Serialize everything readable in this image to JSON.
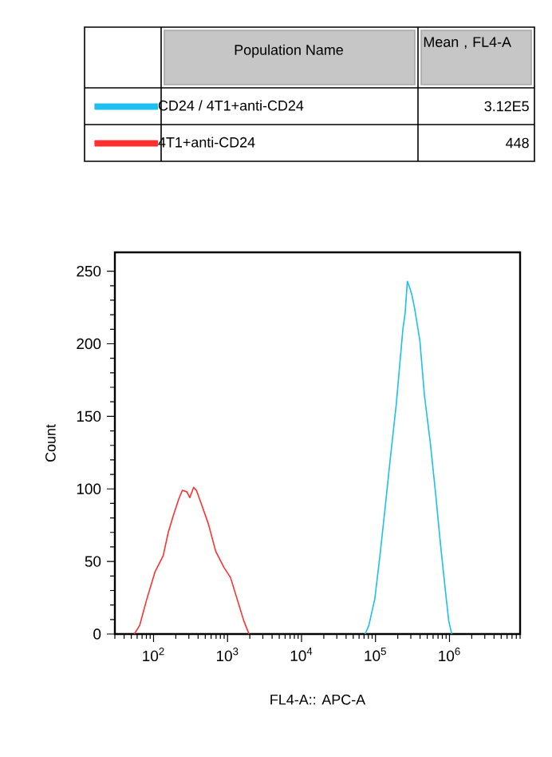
{
  "chart_data": {
    "type": "line",
    "xlabel": "FL4-A:: APC-A",
    "ylabel": "Count",
    "legend": "top",
    "legend_title": "Population Name",
    "annotations": [
      "Mean , FL4-A",
      "3.12E5",
      "448"
    ],
    "log": "x",
    "xlim": [
      30,
      9000000
    ],
    "ylim": [
      0,
      263
    ],
    "xticks": [
      {
        "value": 100,
        "label": "10$^{2}$"
      },
      {
        "value": 1000,
        "label": "10$^{3}$"
      },
      {
        "value": 10000,
        "label": "10$^{4}$"
      },
      {
        "value": 100000,
        "label": "10$^{5}$"
      },
      {
        "value": 1000000,
        "label": "10$^{6}$"
      }
    ],
    "yticks": [
      0,
      50,
      100,
      150,
      200,
      250
    ],
    "series": [
      {
        "name": "CD24 / 4T1+anti-CD24",
        "color": "#1cbfef",
        "x": [
          72400,
          81300,
          97700,
          114800,
          134900,
          158500,
          190500,
          213800,
          234400,
          251200,
          269200,
          288400,
          309000,
          338800,
          398100,
          457100,
          549500,
          645700,
          758600,
          871000,
          977200,
          1071500
        ],
        "values": [
          0,
          6,
          24,
          54,
          87,
          121,
          158,
          187,
          210,
          221,
          243,
          239,
          234,
          224,
          202,
          165,
          132,
          98,
          61,
          32,
          9,
          0
        ]
      },
      {
        "name": "4T1+anti-CD24",
        "color": "#ff3030",
        "x": [
          55,
          65,
          81,
          105,
          135,
          158,
          186,
          219,
          245,
          282,
          309,
          347,
          380,
          447,
          550,
          692,
          891,
          1096,
          1349,
          1660,
          1950
        ],
        "values": [
          0,
          6,
          24,
          43,
          54,
          70,
          82,
          93,
          99,
          98,
          94,
          101,
          99,
          89,
          76,
          57,
          46,
          39,
          24,
          9,
          0
        ]
      }
    ]
  }
}
